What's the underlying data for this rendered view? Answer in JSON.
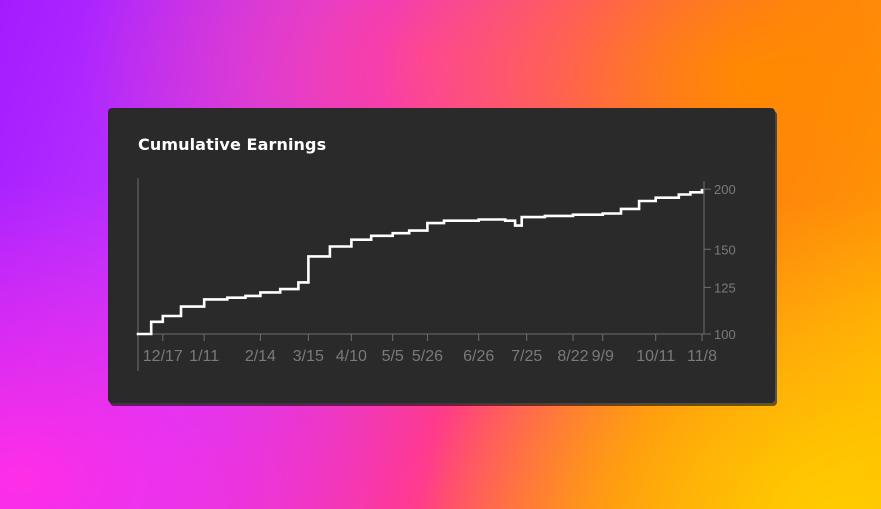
{
  "card": {
    "title": "Cumulative Earnings"
  },
  "colors": {
    "card_bg": "#2a2a2a",
    "line": "#ffffff",
    "axis": "#6f6f6f",
    "tick_text": "#7a7a7a"
  },
  "chart_data": {
    "type": "line",
    "title": "Cumulative Earnings",
    "xlabel": "",
    "ylabel": "",
    "x_tick_labels": [
      "12/17",
      "1/11",
      "2/14",
      "3/15",
      "4/10",
      "5/5",
      "5/26",
      "6/26",
      "7/25",
      "8/22",
      "9/9",
      "10/11",
      "11/8"
    ],
    "y_ticks": [
      100,
      125,
      150,
      200
    ],
    "y_scale": "log",
    "ylim": [
      100,
      205
    ],
    "y_axis_position": "right",
    "grid": false,
    "series": [
      {
        "x": [
          "12/2",
          "12/10",
          "12/17",
          "12/28",
          "1/11",
          "1/25",
          "2/5",
          "2/14",
          "2/26",
          "3/5",
          "3/9",
          "3/15",
          "3/28",
          "4/10",
          "4/22",
          "5/5",
          "5/15",
          "5/26",
          "6/5",
          "6/15",
          "6/26",
          "7/12",
          "7/18",
          "7/22",
          "7/25",
          "8/5",
          "8/22",
          "9/1",
          "9/9",
          "9/20",
          "10/1",
          "10/11",
          "10/25",
          "11/1",
          "11/8"
        ],
        "y": [
          100,
          106,
          109,
          114,
          118,
          119,
          120,
          122,
          124,
          124,
          128,
          145,
          152,
          157,
          160,
          162,
          164,
          170,
          172,
          172,
          173,
          172,
          168,
          175,
          175,
          176,
          177,
          177,
          178,
          182,
          189,
          192,
          195,
          197,
          199
        ]
      }
    ]
  }
}
